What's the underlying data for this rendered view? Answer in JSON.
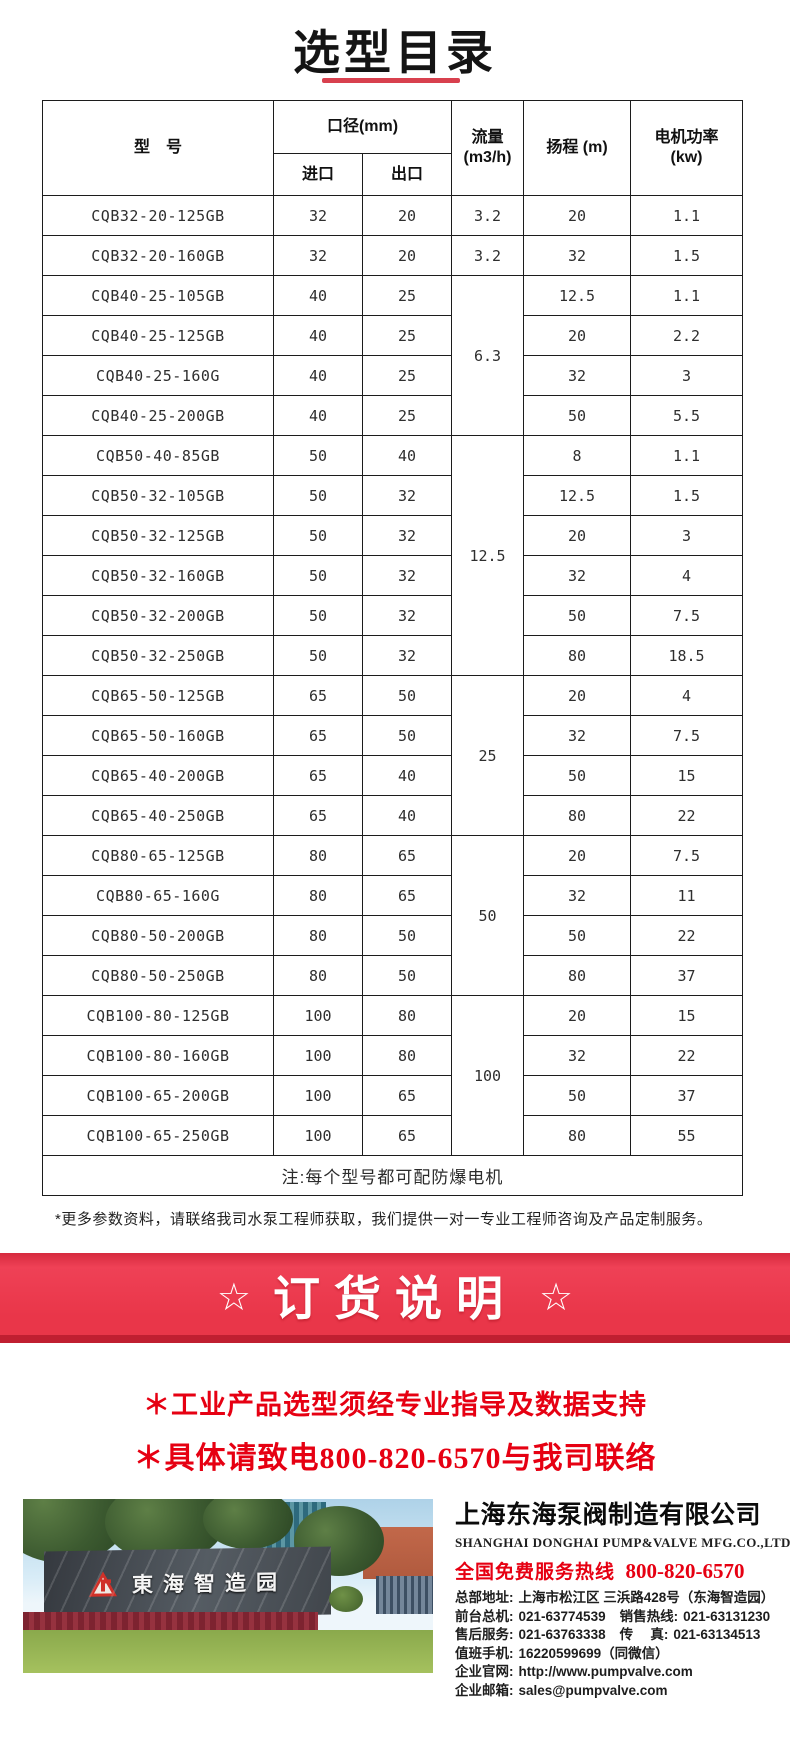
{
  "colors": {
    "accent_red": "#e93649",
    "banner_bottom_red": "#c01f31",
    "underline_red": "#d8404e",
    "notice_red": "#e60012"
  },
  "page": {
    "title": "选型目录"
  },
  "table": {
    "headers": {
      "model": "型　号",
      "diameter_group": "口径(mm)",
      "inlet": "进口",
      "outlet": "出口",
      "flow": "流量\n(m3/h)",
      "head": "扬程 (m)",
      "power": "电机功率\n(kw)"
    },
    "rows": [
      {
        "model": "CQB32-20-125GB",
        "inlet": "32",
        "outlet": "20",
        "flow": "3.2",
        "flow_span": 1,
        "head": "20",
        "power": "1.1"
      },
      {
        "model": "CQB32-20-160GB",
        "inlet": "32",
        "outlet": "20",
        "flow": "3.2",
        "flow_span": 1,
        "head": "32",
        "power": "1.5"
      },
      {
        "model": "CQB40-25-105GB",
        "inlet": "40",
        "outlet": "25",
        "flow": "6.3",
        "flow_span": 4,
        "head": "12.5",
        "power": "1.1"
      },
      {
        "model": "CQB40-25-125GB",
        "inlet": "40",
        "outlet": "25",
        "flow": null,
        "head": "20",
        "power": "2.2"
      },
      {
        "model": "CQB40-25-160G",
        "inlet": "40",
        "outlet": "25",
        "flow": null,
        "head": "32",
        "power": "3"
      },
      {
        "model": "CQB40-25-200GB",
        "inlet": "40",
        "outlet": "25",
        "flow": null,
        "head": "50",
        "power": "5.5"
      },
      {
        "model": "CQB50-40-85GB",
        "inlet": "50",
        "outlet": "40",
        "flow": "12.5",
        "flow_span": 6,
        "head": "8",
        "power": "1.1"
      },
      {
        "model": "CQB50-32-105GB",
        "inlet": "50",
        "outlet": "32",
        "flow": null,
        "head": "12.5",
        "power": "1.5"
      },
      {
        "model": "CQB50-32-125GB",
        "inlet": "50",
        "outlet": "32",
        "flow": null,
        "head": "20",
        "power": "3"
      },
      {
        "model": "CQB50-32-160GB",
        "inlet": "50",
        "outlet": "32",
        "flow": null,
        "head": "32",
        "power": "4"
      },
      {
        "model": "CQB50-32-200GB",
        "inlet": "50",
        "outlet": "32",
        "flow": null,
        "head": "50",
        "power": "7.5"
      },
      {
        "model": "CQB50-32-250GB",
        "inlet": "50",
        "outlet": "32",
        "flow": null,
        "head": "80",
        "power": "18.5"
      },
      {
        "model": "CQB65-50-125GB",
        "inlet": "65",
        "outlet": "50",
        "flow": "25",
        "flow_span": 4,
        "head": "20",
        "power": "4"
      },
      {
        "model": "CQB65-50-160GB",
        "inlet": "65",
        "outlet": "50",
        "flow": null,
        "head": "32",
        "power": "7.5"
      },
      {
        "model": "CQB65-40-200GB",
        "inlet": "65",
        "outlet": "40",
        "flow": null,
        "head": "50",
        "power": "15"
      },
      {
        "model": "CQB65-40-250GB",
        "inlet": "65",
        "outlet": "40",
        "flow": null,
        "head": "80",
        "power": "22"
      },
      {
        "model": "CQB80-65-125GB",
        "inlet": "80",
        "outlet": "65",
        "flow": "50",
        "flow_span": 4,
        "head": "20",
        "power": "7.5"
      },
      {
        "model": "CQB80-65-160G",
        "inlet": "80",
        "outlet": "65",
        "flow": null,
        "head": "32",
        "power": "11"
      },
      {
        "model": "CQB80-50-200GB",
        "inlet": "80",
        "outlet": "50",
        "flow": null,
        "head": "50",
        "power": "22"
      },
      {
        "model": "CQB80-50-250GB",
        "inlet": "80",
        "outlet": "50",
        "flow": null,
        "head": "80",
        "power": "37"
      },
      {
        "model": "CQB100-80-125GB",
        "inlet": "100",
        "outlet": "80",
        "flow": "100",
        "flow_span": 4,
        "head": "20",
        "power": "15"
      },
      {
        "model": "CQB100-80-160GB",
        "inlet": "100",
        "outlet": "80",
        "flow": null,
        "head": "32",
        "power": "22"
      },
      {
        "model": "CQB100-65-200GB",
        "inlet": "100",
        "outlet": "65",
        "flow": null,
        "head": "50",
        "power": "37"
      },
      {
        "model": "CQB100-65-250GB",
        "inlet": "100",
        "outlet": "65",
        "flow": null,
        "head": "80",
        "power": "55"
      }
    ],
    "note": "注:每个型号都可配防爆电机"
  },
  "footnote": "*更多参数资料，请联络我司水泵工程师获取，我们提供一对一专业工程师咨询及产品定制服务。",
  "banner": {
    "star": "☆",
    "title": "订货说明"
  },
  "notices": {
    "line1": "＊工业产品选型须经专业指导及数据支持",
    "line2": "＊具体请致电800-820-6570与我司联络"
  },
  "photo": {
    "sign_text": "東海智造园"
  },
  "company": {
    "name": "上海东海泵阀制造有限公司",
    "name_en": "SHANGHAI DONGHAI PUMP&VALVE MFG.CO.,LTD.",
    "hotline_label": "全国免费服务热线",
    "hotline_number": "800-820-6570",
    "contacts": [
      [
        {
          "label": "总部地址:",
          "value": "上海市松江区 三浜路428号（东海智造园）"
        }
      ],
      [
        {
          "label": "前台总机:",
          "value": "021-63774539"
        },
        {
          "label": "销售热线:",
          "value": "021-63131230"
        }
      ],
      [
        {
          "label": "售后服务:",
          "value": "021-63763338"
        },
        {
          "label": "传　 真:",
          "value": "021-63134513"
        }
      ],
      [
        {
          "label": "值班手机:",
          "value": "16220599699（同微信）"
        }
      ],
      [
        {
          "label": "企业官网:",
          "value": "http://www.pumpvalve.com",
          "link": true
        }
      ],
      [
        {
          "label": "企业邮箱:",
          "value": "sales@pumpvalve.com",
          "link": true
        }
      ]
    ]
  }
}
